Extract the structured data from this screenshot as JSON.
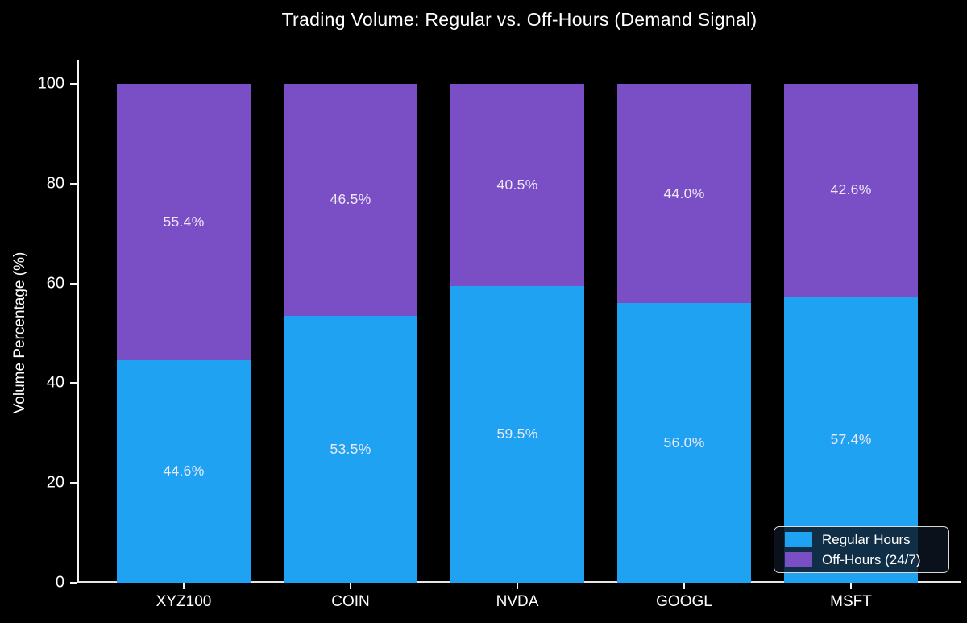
{
  "chart_data": {
    "type": "bar",
    "stacked": true,
    "title": "Trading Volume: Regular vs. Off-Hours (Demand Signal)",
    "ylabel": "Volume Percentage (%)",
    "xlabel": "",
    "categories": [
      "XYZ100",
      "COIN",
      "NVDA",
      "GOOGL",
      "MSFT"
    ],
    "series": [
      {
        "name": "Regular Hours",
        "color": "#1FA2F2",
        "values": [
          44.6,
          53.5,
          59.5,
          56.0,
          57.4
        ]
      },
      {
        "name": "Off-Hours (24/7)",
        "color": "#7A4EC4",
        "values": [
          55.4,
          46.5,
          40.5,
          44.0,
          42.6
        ]
      }
    ],
    "value_label_format": "{value}%",
    "ylim": [
      0,
      100
    ],
    "yticks": [
      0,
      20,
      40,
      60,
      80,
      100
    ],
    "grid": false,
    "legend_position": "lower right",
    "background_color": "#000000",
    "text_color": "#ffffff",
    "bar_label_color": "#ECE8F6"
  }
}
